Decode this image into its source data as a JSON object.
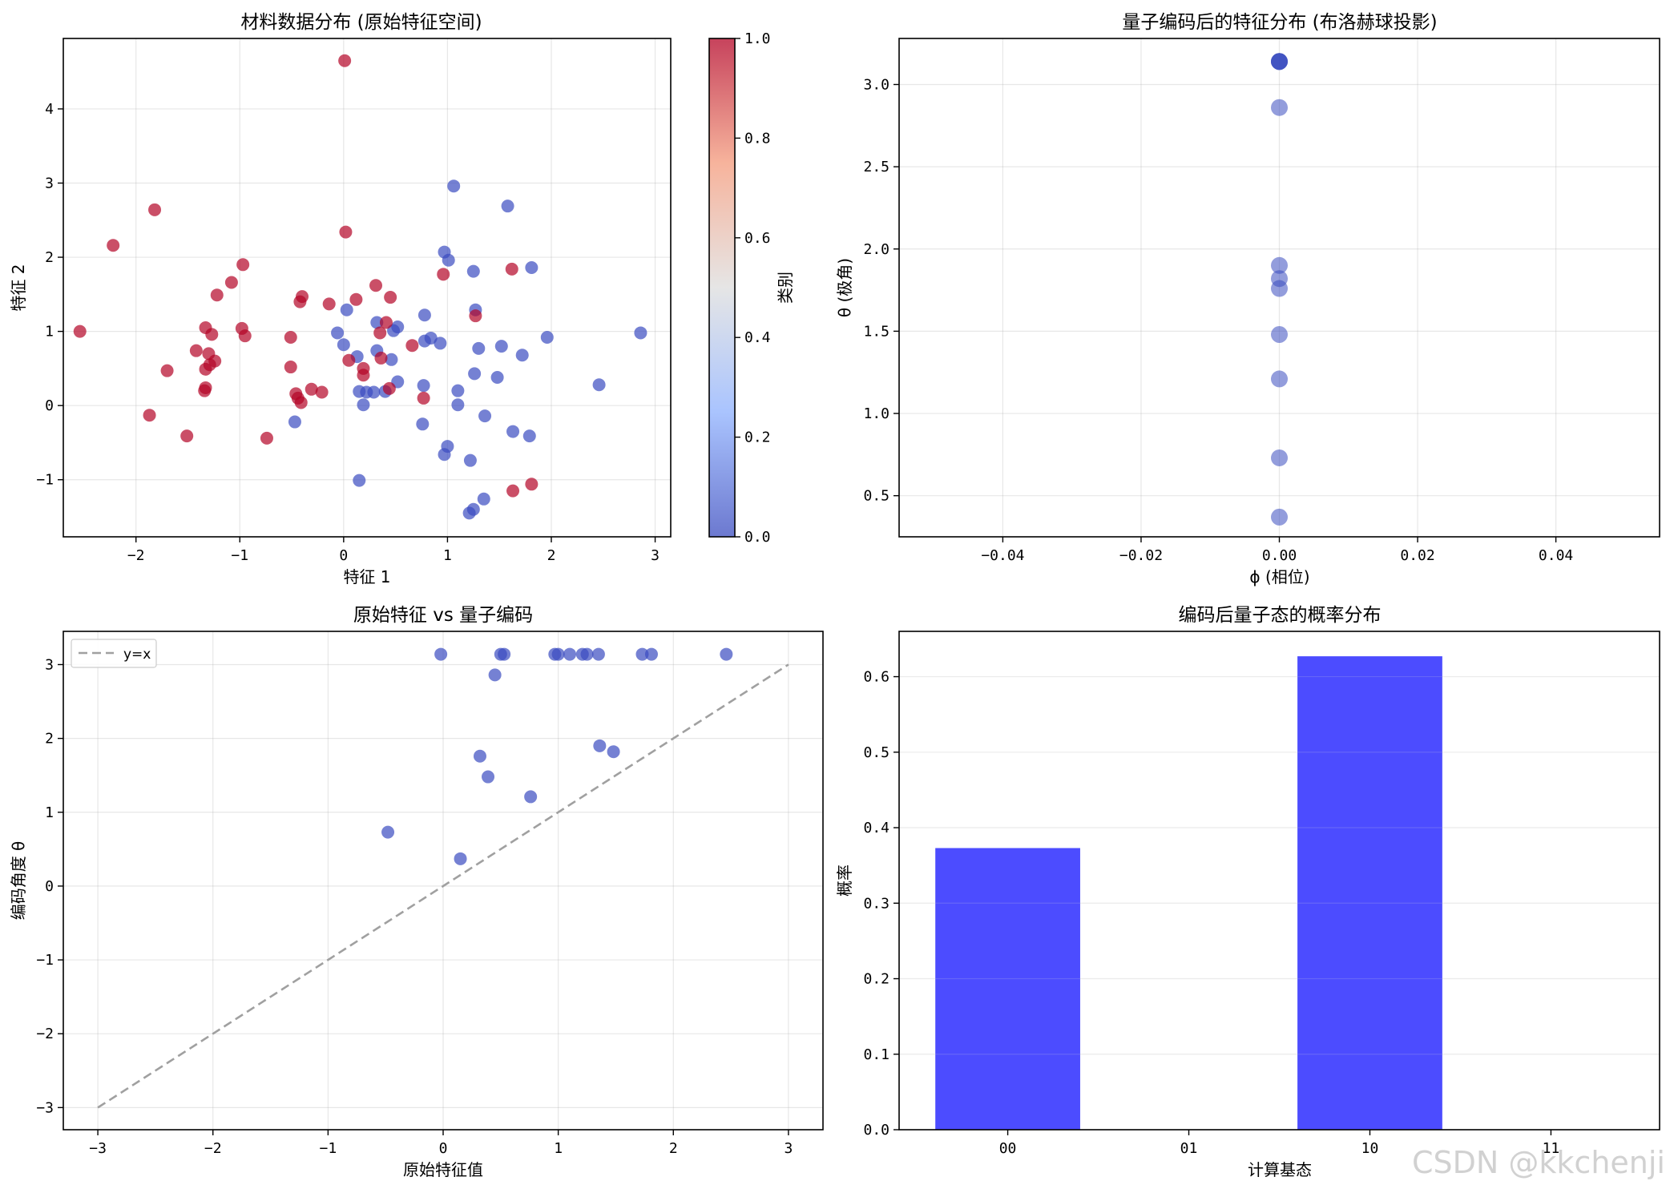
{
  "chart_data": [
    {
      "id": "p1",
      "type": "scatter",
      "title": "材料数据分布 (原始特征空间)",
      "xlabel": "特征 1",
      "ylabel": "特征 2",
      "xlim": [
        -2.7,
        3.15
      ],
      "ylim": [
        -1.77,
        4.95
      ],
      "xticks": [
        -2,
        -1,
        0,
        1,
        2,
        3
      ],
      "yticks": [
        -1,
        0,
        1,
        2,
        3,
        4
      ],
      "grid": true,
      "colorbar": {
        "label": "类别",
        "ticks": [
          "0.0",
          "0.2",
          "0.4",
          "0.6",
          "0.8",
          "1.0"
        ],
        "range": [
          0,
          1
        ]
      },
      "series": [
        {
          "name": "",
          "class": 0,
          "color": "#3b4cc0",
          "points": [
            [
              1.06,
              2.96
            ],
            [
              1.58,
              2.69
            ],
            [
              0.97,
              2.07
            ],
            [
              1.01,
              1.96
            ],
            [
              1.81,
              1.86
            ],
            [
              1.25,
              1.81
            ],
            [
              0.03,
              1.29
            ],
            [
              1.27,
              1.29
            ],
            [
              0.78,
              1.22
            ],
            [
              0.32,
              1.12
            ],
            [
              0.52,
              1.06
            ],
            [
              0.48,
              1.01
            ],
            [
              -0.06,
              0.98
            ],
            [
              0.84,
              0.91
            ],
            [
              1.96,
              0.92
            ],
            [
              2.86,
              0.98
            ],
            [
              0.78,
              0.87
            ],
            [
              0.93,
              0.84
            ],
            [
              0.0,
              0.82
            ],
            [
              1.3,
              0.77
            ],
            [
              1.52,
              0.8
            ],
            [
              1.72,
              0.68
            ],
            [
              0.13,
              0.66
            ],
            [
              0.32,
              0.74
            ],
            [
              0.46,
              0.62
            ],
            [
              1.26,
              0.43
            ],
            [
              1.48,
              0.38
            ],
            [
              0.52,
              0.32
            ],
            [
              0.77,
              0.27
            ],
            [
              1.1,
              0.2
            ],
            [
              2.46,
              0.28
            ],
            [
              0.15,
              0.19
            ],
            [
              0.22,
              0.18
            ],
            [
              0.29,
              0.18
            ],
            [
              0.4,
              0.19
            ],
            [
              0.19,
              0.01
            ],
            [
              1.1,
              0.01
            ],
            [
              -0.47,
              -0.22
            ],
            [
              0.76,
              -0.25
            ],
            [
              1.36,
              -0.14
            ],
            [
              1.63,
              -0.35
            ],
            [
              1.79,
              -0.41
            ],
            [
              1.0,
              -0.55
            ],
            [
              0.97,
              -0.66
            ],
            [
              1.22,
              -0.74
            ],
            [
              0.15,
              -1.01
            ],
            [
              1.35,
              -1.26
            ],
            [
              1.25,
              -1.4
            ],
            [
              1.21,
              -1.45
            ]
          ]
        },
        {
          "name": "",
          "class": 1,
          "color": "#b40426",
          "points": [
            [
              0.01,
              4.65
            ],
            [
              -1.82,
              2.64
            ],
            [
              -2.22,
              2.16
            ],
            [
              0.02,
              2.34
            ],
            [
              -0.97,
              1.9
            ],
            [
              0.96,
              1.77
            ],
            [
              1.62,
              1.84
            ],
            [
              -1.08,
              1.66
            ],
            [
              -1.22,
              1.49
            ],
            [
              -0.4,
              1.47
            ],
            [
              -0.42,
              1.4
            ],
            [
              0.31,
              1.62
            ],
            [
              0.12,
              1.43
            ],
            [
              0.45,
              1.46
            ],
            [
              -0.14,
              1.37
            ],
            [
              1.27,
              1.21
            ],
            [
              -2.54,
              1.0
            ],
            [
              -1.33,
              1.05
            ],
            [
              -0.98,
              1.04
            ],
            [
              -0.95,
              0.94
            ],
            [
              -1.27,
              0.96
            ],
            [
              -0.51,
              0.92
            ],
            [
              0.35,
              0.98
            ],
            [
              0.41,
              1.12
            ],
            [
              0.66,
              0.81
            ],
            [
              -1.42,
              0.74
            ],
            [
              -1.3,
              0.7
            ],
            [
              0.05,
              0.61
            ],
            [
              0.36,
              0.64
            ],
            [
              -1.24,
              0.6
            ],
            [
              -1.29,
              0.55
            ],
            [
              -1.33,
              0.49
            ],
            [
              -1.7,
              0.47
            ],
            [
              -0.51,
              0.52
            ],
            [
              0.19,
              0.5
            ],
            [
              0.19,
              0.41
            ],
            [
              -1.33,
              0.24
            ],
            [
              -1.34,
              0.2
            ],
            [
              -0.31,
              0.22
            ],
            [
              -0.21,
              0.18
            ],
            [
              -0.46,
              0.16
            ],
            [
              -0.44,
              0.1
            ],
            [
              -0.41,
              0.04
            ],
            [
              0.44,
              0.23
            ],
            [
              0.77,
              0.1
            ],
            [
              -1.87,
              -0.13
            ],
            [
              -1.51,
              -0.41
            ],
            [
              -0.74,
              -0.44
            ],
            [
              1.63,
              -1.15
            ],
            [
              1.81,
              -1.06
            ]
          ]
        }
      ]
    },
    {
      "id": "p2",
      "type": "scatter",
      "title": "量子编码后的特征分布 (布洛赫球投影)",
      "xlabel": "ϕ (相位)",
      "ylabel": "θ (极角)",
      "xlim": [
        -0.055,
        0.055
      ],
      "ylim": [
        0.25,
        3.28
      ],
      "xticks": [
        -0.04,
        -0.02,
        0.0,
        0.02,
        0.04
      ],
      "xtick_labels": [
        "−0.04",
        "−0.02",
        "0.00",
        "0.02",
        "0.04"
      ],
      "yticks": [
        0.5,
        1.0,
        1.5,
        2.0,
        2.5,
        3.0
      ],
      "grid": true,
      "color": "#3b4cc0",
      "x": [
        0,
        0,
        0,
        0,
        0,
        0,
        0,
        0,
        0,
        0,
        0,
        0
      ],
      "y": [
        3.14,
        3.14,
        3.14,
        2.86,
        1.9,
        1.82,
        1.76,
        1.48,
        1.21,
        0.73,
        0.37,
        3.14
      ]
    },
    {
      "id": "p3",
      "type": "scatter",
      "title": "原始特征 vs 量子编码",
      "xlabel": "原始特征值",
      "ylabel": "编码角度 θ",
      "xlim": [
        -3.3,
        3.3
      ],
      "ylim": [
        -3.3,
        3.45
      ],
      "xticks": [
        -3,
        -2,
        -1,
        0,
        1,
        2,
        3
      ],
      "yticks": [
        -3,
        -2,
        -1,
        0,
        1,
        2,
        3
      ],
      "grid": true,
      "legend": {
        "entries": [
          "y=x"
        ],
        "placement": "top-left"
      },
      "reference_line": {
        "name": "y=x",
        "from": [
          -3,
          -3
        ],
        "to": [
          3,
          3
        ],
        "color": "#a0a0a0"
      },
      "color": "#3b4cc0",
      "points": [
        [
          -0.02,
          3.14
        ],
        [
          0.5,
          3.14
        ],
        [
          0.53,
          3.14
        ],
        [
          0.97,
          3.14
        ],
        [
          1.0,
          3.14
        ],
        [
          1.1,
          3.14
        ],
        [
          1.21,
          3.14
        ],
        [
          1.25,
          3.14
        ],
        [
          1.35,
          3.14
        ],
        [
          1.73,
          3.14
        ],
        [
          1.81,
          3.14
        ],
        [
          2.46,
          3.14
        ],
        [
          0.45,
          2.86
        ],
        [
          1.36,
          1.9
        ],
        [
          1.48,
          1.82
        ],
        [
          0.32,
          1.76
        ],
        [
          0.39,
          1.48
        ],
        [
          0.76,
          1.21
        ],
        [
          -0.48,
          0.73
        ],
        [
          0.15,
          0.37
        ]
      ]
    },
    {
      "id": "p4",
      "type": "bar",
      "title": "编码后量子态的概率分布",
      "xlabel": "计算基态",
      "ylabel": "概率",
      "categories": [
        "00",
        "01",
        "10",
        "11"
      ],
      "values": [
        0.373,
        0.0,
        0.627,
        0.0
      ],
      "ylim": [
        0,
        0.66
      ],
      "yticks": [
        0.0,
        0.1,
        0.2,
        0.3,
        0.4,
        0.5,
        0.6
      ],
      "grid": true,
      "color": "#0000ff"
    }
  ],
  "watermark": "CSDN @kkchenji"
}
